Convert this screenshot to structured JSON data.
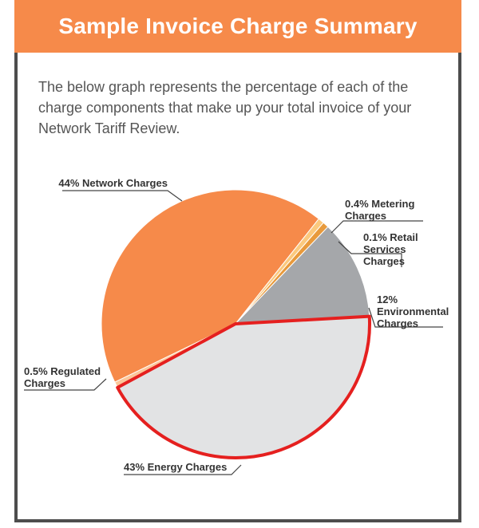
{
  "header": {
    "title": "Sample Invoice Charge Summary"
  },
  "intro": "The below graph represents the percentage of each of the charge components that make up your total invoice of your Network Tariff Review.",
  "chart_data": {
    "type": "pie",
    "title": "Sample Invoice Charge Summary",
    "slices": [
      {
        "name": "Network Charges",
        "label": [
          "44% Network Charges"
        ],
        "value": 44,
        "color": "#f68a4a"
      },
      {
        "name": "Metering Charges",
        "label": [
          "0.4% Metering",
          "Charges"
        ],
        "value": 0.4,
        "color": "#fbc97e"
      },
      {
        "name": "Retail Services Charges",
        "label": [
          "0.1% Retail",
          "Services",
          "Charges"
        ],
        "value": 0.1,
        "color": "#e89a3c"
      },
      {
        "name": "Environmental Charges",
        "label": [
          "12%",
          "Environmental",
          "Charges"
        ],
        "value": 12,
        "color": "#a5a7aa"
      },
      {
        "name": "Energy Charges",
        "label": [
          "43% Energy Charges"
        ],
        "value": 43,
        "color": "#e2e3e4",
        "highlight": "#e5201f"
      },
      {
        "name": "Regulated Charges",
        "label": [
          "0.5% Regulated",
          "Charges"
        ],
        "value": 0.5,
        "color": "#fbc79a"
      }
    ]
  }
}
